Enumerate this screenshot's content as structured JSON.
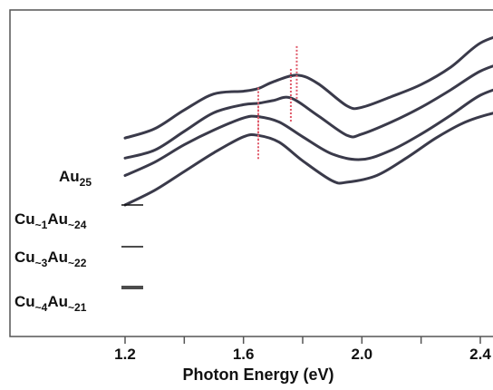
{
  "chart_data": {
    "type": "line",
    "xlabel": "Photon Energy (eV)",
    "ylabel": "",
    "xlim": [
      1.2,
      2.5
    ],
    "x_ticks": [
      "1.2",
      "1.6",
      "2.0",
      "2.4"
    ],
    "y_ticks_visible": false,
    "grid": false,
    "series": [
      {
        "name": "Au25",
        "label_main": "Au",
        "label_sub": "25",
        "color": "#3a3a4a",
        "x": [
          1.2,
          1.3,
          1.4,
          1.5,
          1.6,
          1.65,
          1.7,
          1.78,
          1.85,
          1.95,
          2.0,
          2.1,
          2.2,
          2.3,
          2.4,
          2.5
        ],
        "values": [
          7.45,
          7.8,
          8.5,
          9.1,
          9.2,
          9.3,
          9.55,
          9.8,
          9.5,
          8.65,
          8.6,
          9.0,
          9.45,
          10.1,
          11.0,
          11.4
        ],
        "peak_marker": 1.78
      },
      {
        "name": "Cu~1Au~24",
        "label_main": "Cu",
        "label_parts": [
          {
            "text": "Cu",
            "sub": false
          },
          {
            "text": "~1",
            "sub": true
          },
          {
            "text": "Au",
            "sub": false
          },
          {
            "text": "~24",
            "sub": true
          }
        ],
        "color": "#3a3a4a",
        "x": [
          1.2,
          1.3,
          1.4,
          1.5,
          1.6,
          1.65,
          1.7,
          1.76,
          1.85,
          1.95,
          2.0,
          2.1,
          2.2,
          2.3,
          2.4,
          2.5
        ],
        "values": [
          6.7,
          7.0,
          7.7,
          8.4,
          8.7,
          8.75,
          8.85,
          8.95,
          8.3,
          7.55,
          7.6,
          8.05,
          8.6,
          9.25,
          9.95,
          10.35
        ],
        "peak_marker": 1.76
      },
      {
        "name": "Cu~3Au~22",
        "label_parts": [
          {
            "text": "Cu",
            "sub": false
          },
          {
            "text": "~3",
            "sub": true
          },
          {
            "text": "Au",
            "sub": false
          },
          {
            "text": "~22",
            "sub": true
          }
        ],
        "color": "#3a3a4a",
        "x": [
          1.2,
          1.3,
          1.4,
          1.5,
          1.6,
          1.65,
          1.72,
          1.8,
          1.9,
          2.0,
          2.1,
          2.2,
          2.3,
          2.4,
          2.5
        ],
        "values": [
          6.05,
          6.55,
          7.2,
          7.75,
          8.2,
          8.25,
          8.05,
          7.5,
          6.85,
          6.65,
          7.0,
          7.6,
          8.3,
          9.05,
          9.45
        ],
        "peak_marker": 1.65
      },
      {
        "name": "Cu~4Au~21",
        "label_parts": [
          {
            "text": "Cu",
            "sub": false
          },
          {
            "text": "~4",
            "sub": true
          },
          {
            "text": "Au",
            "sub": false
          },
          {
            "text": "~21",
            "sub": true
          }
        ],
        "color": "#3a3a4a",
        "x": [
          1.2,
          1.3,
          1.4,
          1.5,
          1.6,
          1.65,
          1.72,
          1.8,
          1.9,
          1.95,
          2.05,
          2.15,
          2.25,
          2.35,
          2.45,
          2.5
        ],
        "values": [
          4.95,
          5.5,
          6.2,
          6.9,
          7.5,
          7.55,
          7.3,
          6.6,
          5.85,
          5.8,
          6.05,
          6.7,
          7.45,
          8.05,
          8.4,
          8.45
        ],
        "peak_marker": 1.65
      }
    ],
    "marker_color": "#e05a6a"
  }
}
